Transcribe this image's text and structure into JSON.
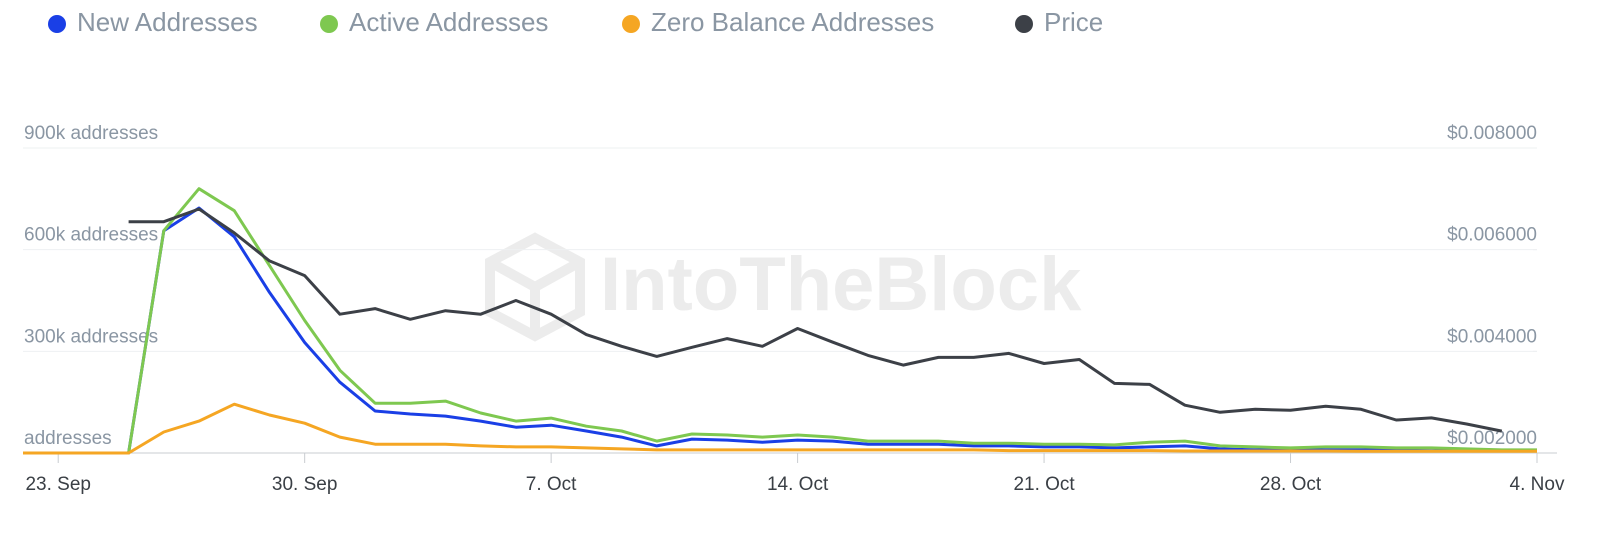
{
  "chart_data": {
    "type": "line",
    "watermark": "IntoTheBlock",
    "x": [
      -1,
      0,
      1,
      2,
      3,
      4,
      5,
      6,
      7,
      8,
      9,
      10,
      11,
      12,
      13,
      14,
      15,
      16,
      17,
      18,
      19,
      20,
      21,
      22,
      23,
      24,
      25,
      26,
      27,
      28,
      29,
      30,
      31,
      32,
      33,
      34,
      35,
      36,
      37,
      38,
      39,
      40,
      41,
      42
    ],
    "xlim": [
      -1,
      42
    ],
    "xticks": [
      {
        "value": 0,
        "label": "23. Sep"
      },
      {
        "value": 7,
        "label": "30. Sep"
      },
      {
        "value": 14,
        "label": "7. Oct"
      },
      {
        "value": 21,
        "label": "14. Oct"
      },
      {
        "value": 28,
        "label": "21. Oct"
      },
      {
        "value": 35,
        "label": "28. Oct"
      },
      {
        "value": 42,
        "label": "4. Nov"
      }
    ],
    "ylim": [
      0,
      900000
    ],
    "yticks": [
      {
        "value": 0,
        "label": "addresses"
      },
      {
        "value": 300000,
        "label": "300k addresses"
      },
      {
        "value": 600000,
        "label": "600k addresses"
      },
      {
        "value": 900000,
        "label": "900k addresses"
      }
    ],
    "y2lim": [
      0.002,
      0.008
    ],
    "y2ticks": [
      {
        "value": 0.002,
        "label": "$0.002000"
      },
      {
        "value": 0.004,
        "label": "$0.004000"
      },
      {
        "value": 0.006,
        "label": "$0.006000"
      },
      {
        "value": 0.008,
        "label": "$0.008000"
      }
    ],
    "grid": true,
    "legend": "top-left",
    "series": [
      {
        "name": "New Addresses",
        "color": "#1a3fe6",
        "values": [
          0,
          0,
          0,
          0,
          656000,
          723000,
          638000,
          474000,
          326000,
          209000,
          124000,
          115000,
          109000,
          94000,
          76000,
          82000,
          65000,
          47000,
          21000,
          41000,
          38000,
          32000,
          38000,
          35000,
          26000,
          26000,
          26000,
          21000,
          21000,
          18000,
          18000,
          15000,
          18000,
          21000,
          12000,
          9000,
          9000,
          9000,
          9000,
          9000,
          6000,
          6000,
          6000,
          6000
        ]
      },
      {
        "name": "Active Addresses",
        "color": "#7ec850",
        "values": [
          0,
          0,
          0,
          0,
          656000,
          780000,
          715000,
          553000,
          391000,
          244000,
          147000,
          147000,
          153000,
          118000,
          94000,
          103000,
          79000,
          65000,
          35000,
          56000,
          53000,
          47000,
          53000,
          47000,
          35000,
          35000,
          35000,
          29000,
          29000,
          26000,
          26000,
          24000,
          32000,
          35000,
          21000,
          18000,
          15000,
          18000,
          18000,
          15000,
          15000,
          12000,
          9000,
          9000
        ]
      },
      {
        "name": "Zero Balance Addresses",
        "color": "#f5a623",
        "values": [
          0,
          0,
          0,
          0,
          62000,
          94000,
          144000,
          112000,
          88000,
          47000,
          26000,
          26000,
          26000,
          21000,
          18000,
          18000,
          15000,
          12000,
          9000,
          9000,
          9000,
          9000,
          9000,
          9000,
          9000,
          9000,
          9000,
          9000,
          7000,
          7000,
          7000,
          7000,
          7000,
          6000,
          6000,
          6000,
          6000,
          6000,
          5000,
          5000,
          5000,
          5000,
          5000,
          5000
        ]
      },
      {
        "name": "Price",
        "color": "#3c4047",
        "axis": "y2",
        "values": [
          null,
          null,
          null,
          0.00655,
          0.00655,
          0.0068,
          0.00633,
          0.00578,
          0.00549,
          0.00473,
          0.00484,
          0.00463,
          0.0048,
          0.00473,
          0.005,
          0.00473,
          0.00433,
          0.0041,
          0.0039,
          0.00408,
          0.00425,
          0.0041,
          0.00445,
          0.00418,
          0.00392,
          0.00373,
          0.00388,
          0.00388,
          0.00396,
          0.00376,
          0.00384,
          0.00337,
          0.00335,
          0.00294,
          0.0028,
          0.00286,
          0.00284,
          0.00292,
          0.00286,
          0.00265,
          0.00269,
          0.00257,
          0.00243,
          null
        ]
      }
    ]
  }
}
